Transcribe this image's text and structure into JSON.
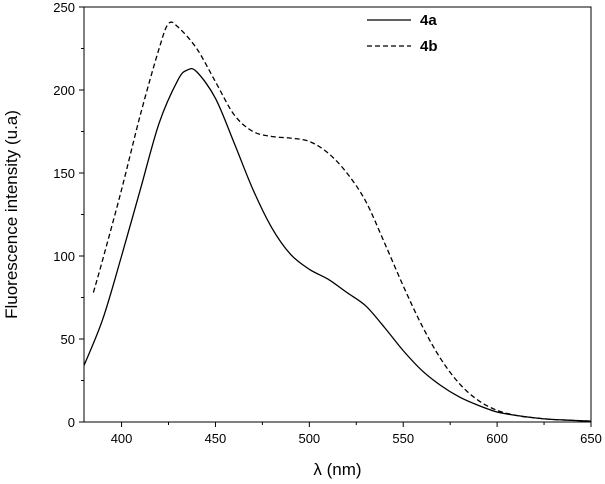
{
  "chart_data": {
    "type": "line",
    "title": "",
    "xlabel": "λ (nm)",
    "ylabel": "Fluorescence intensity (u.a)",
    "xlim": [
      380,
      650
    ],
    "ylim": [
      0,
      250
    ],
    "xticks": [
      400,
      450,
      500,
      550,
      600,
      650
    ],
    "yticks": [
      0,
      50,
      100,
      150,
      200,
      250
    ],
    "grid": false,
    "legend_position": "top-right",
    "series": [
      {
        "name": "4a",
        "line_style": "solid",
        "color": "#000000",
        "x": [
          380,
          390,
          400,
          410,
          420,
          430,
          435,
          440,
          450,
          460,
          470,
          480,
          490,
          500,
          510,
          520,
          530,
          540,
          550,
          560,
          570,
          580,
          590,
          600,
          610,
          620,
          630,
          640,
          650
        ],
        "y": [
          34,
          62,
          100,
          140,
          180,
          206,
          212,
          211,
          195,
          168,
          140,
          117,
          101,
          92,
          86,
          78,
          70,
          57,
          43,
          31,
          22,
          15,
          10,
          6,
          4,
          2.5,
          1.5,
          1,
          0.5
        ]
      },
      {
        "name": "4b",
        "line_style": "dashed",
        "color": "#000000",
        "x": [
          385,
          390,
          400,
          410,
          420,
          425,
          430,
          440,
          450,
          460,
          470,
          480,
          490,
          500,
          510,
          520,
          530,
          540,
          550,
          560,
          570,
          580,
          590,
          600,
          610,
          620,
          630,
          640,
          650
        ],
        "y": [
          78,
          98,
          140,
          185,
          225,
          240,
          238,
          225,
          205,
          185,
          175,
          172,
          171,
          169,
          162,
          150,
          133,
          108,
          82,
          58,
          38,
          23,
          13,
          7,
          4,
          2.5,
          1.5,
          1,
          0.5
        ]
      }
    ]
  }
}
